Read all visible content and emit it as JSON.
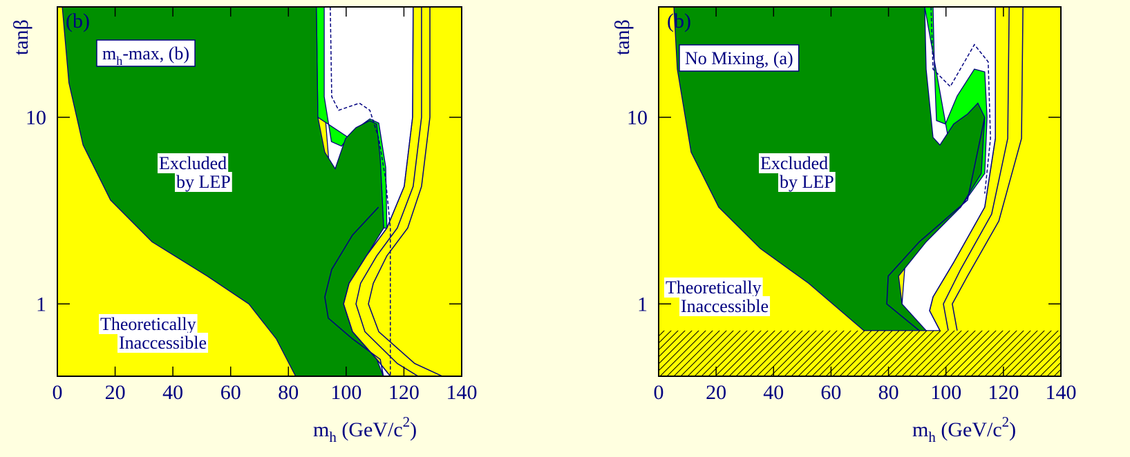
{
  "chart_data": [
    {
      "type": "region",
      "panel_label": "(b)",
      "ylabel": "tanβ",
      "xlabel": [
        {
          "t": "m"
        },
        {
          "t": "h",
          "pos": "sub"
        },
        {
          "t": " (GeV/c"
        },
        {
          "t": "2",
          "pos": "sup"
        },
        {
          "t": ")"
        }
      ],
      "xlim": [
        0,
        140
      ],
      "ylim": [
        0.41,
        39
      ],
      "log_y": true,
      "xticks": [
        0,
        20,
        40,
        60,
        80,
        100,
        120,
        140
      ],
      "yticks": [
        1,
        10
      ],
      "background": "#ffff00",
      "annotations": [
        {
          "parts": [
            {
              "t": "m"
            },
            {
              "t": "h",
              "pos": "sub"
            },
            {
              "t": "-max, (b)"
            }
          ],
          "boxed": true
        },
        {
          "lines": [
            "Excluded",
            "by LEP"
          ]
        },
        {
          "lines": [
            "Theoretically",
            "Inaccessible"
          ]
        }
      ],
      "regions": [
        {
          "color": "#ffffff",
          "x": [
            89.7,
            123.2,
            123,
            120.1,
            114.1,
            107,
            101,
            99.1,
            102.2,
            110.6,
            115.3,
            100
          ],
          "y": [
            39,
            39,
            10,
            4.26,
            2.55,
            1.81,
            1.29,
            1,
            0.71,
            0.505,
            0.41,
            0.41
          ]
        },
        {
          "color": "#00ff00",
          "x": [
            89.7,
            92.4,
            92.4,
            94.9,
            98.4,
            102.2,
            108.2,
            111.3,
            113.7,
            114.1,
            113,
            111.8,
            90.2
          ],
          "y": [
            39,
            39,
            12.9,
            7.4,
            7.0,
            8.4,
            9.8,
            9.3,
            5.4,
            2.55,
            2.55,
            6,
            10
          ]
        },
        {
          "color": "#008f00",
          "x": [
            1.7,
            4,
            8.9,
            18.4,
            32.8,
            51.9,
            66.3,
            75.8,
            82.5,
            112.9,
            110.6,
            102.2,
            99.1,
            101,
            107,
            113,
            111.8,
            110.6,
            108.2,
            103.4,
            99.8,
            96.2,
            92.6,
            90.2,
            89.7
          ],
          "y": [
            39,
            15.3,
            7.1,
            3.6,
            2.15,
            1.41,
            1,
            0.65,
            0.41,
            0.41,
            0.505,
            0.71,
            1,
            1.29,
            1.81,
            2.55,
            6,
            9.2,
            9.6,
            8.8,
            7.7,
            5.3,
            6.5,
            10,
            39
          ]
        }
      ],
      "curves": [
        {
          "color": "#000080",
          "x": [
            123.2,
            123,
            120.1,
            114.1,
            107,
            101,
            99.1,
            102.2,
            110.6,
            115.3
          ],
          "y": [
            39,
            10,
            4.26,
            2.55,
            1.81,
            1.29,
            1,
            0.71,
            0.505,
            0.41
          ]
        },
        {
          "color": "#000080",
          "x": [
            126.1,
            126.1,
            123.2,
            117.7,
            110.6,
            105,
            103.4,
            106.5,
            117.7,
            124.9
          ],
          "y": [
            39,
            10,
            4.26,
            2.55,
            1.81,
            1.29,
            1,
            0.71,
            0.48,
            0.41
          ]
        },
        {
          "color": "#000080",
          "x": [
            129,
            129,
            126.1,
            121.3,
            114.1,
            109.4,
            107.7,
            111.3,
            123.7,
            133.3
          ],
          "y": [
            39,
            10,
            4.26,
            2.55,
            1.81,
            1.29,
            1,
            0.71,
            0.48,
            0.41
          ]
        },
        {
          "color": "#000080",
          "dash": true,
          "x": [
            94.5,
            95,
            97.4,
            104.6,
            108.2,
            111.3,
            113.7,
            115.3,
            115.3
          ],
          "y": [
            39,
            12.9,
            10.9,
            11.9,
            10.9,
            7.7,
            4.6,
            2.55,
            0.41
          ]
        },
        {
          "color": "#000080",
          "x": [
            111.2,
            102.2,
            95,
            92.6,
            93.8,
            102.2,
            111.8,
            112.9
          ],
          "y": [
            3.3,
            2.34,
            1.53,
            1.09,
            0.84,
            0.65,
            0.505,
            0.41
          ]
        }
      ]
    },
    {
      "type": "region",
      "panel_label": "(b)",
      "ylabel": "tanβ",
      "xlabel": [
        {
          "t": "m"
        },
        {
          "t": "h",
          "pos": "sub"
        },
        {
          "t": " (GeV/c"
        },
        {
          "t": "2",
          "pos": "sup"
        },
        {
          "t": ")"
        }
      ],
      "xlim": [
        0,
        140
      ],
      "ylim": [
        0.41,
        39
      ],
      "log_y": true,
      "xticks": [
        0,
        20,
        40,
        60,
        80,
        100,
        120,
        140
      ],
      "yticks": [
        1,
        10
      ],
      "background": "#ffff00",
      "hatch_below": 0.72,
      "annotations": [
        {
          "parts": [
            {
              "t": "No Mixing, (a)"
            }
          ],
          "boxed": true
        },
        {
          "lines": [
            "Excluded",
            "by LEP"
          ]
        },
        {
          "lines": [
            "Theoretically",
            "Inaccessible"
          ]
        }
      ],
      "regions": [
        {
          "color": "#ffffff",
          "x": [
            92.6,
            117.2,
            117.2,
            113.5,
            102.7,
            95.5,
            94.3,
            97.9,
            84
          ],
          "y": [
            39,
            39,
            7.7,
            3.3,
            1.67,
            1.09,
            0.92,
            0.72,
            0.72
          ]
        },
        {
          "color": "#00ff00",
          "x": [
            92.6,
            95.5,
            96,
            96.7,
            99.8,
            103.9,
            109.9,
            113.5,
            114.3,
            113.5,
            105.1
          ],
          "y": [
            39,
            39,
            18.1,
            9.6,
            9.2,
            13,
            18.1,
            17.5,
            10,
            5,
            3.3
          ]
        },
        {
          "color": "#008f00",
          "x": [
            5.3,
            6.5,
            11.3,
            20.9,
            35.4,
            52.2,
            71.4,
            93.1,
            84.7,
            83.5,
            93.1,
            105.1,
            112.3,
            113.5,
            111.1,
            107.5,
            102.7,
            97.9,
            95.5,
            93.1,
            92.6
          ],
          "y": [
            39,
            18.1,
            6.5,
            3.3,
            1.98,
            1.29,
            0.72,
            0.72,
            1,
            1.41,
            2.15,
            3.3,
            5,
            10,
            11.9,
            10.4,
            9.2,
            7.1,
            7.8,
            18.1,
            39
          ]
        }
      ],
      "curves": [
        {
          "color": "#000080",
          "x": [
            117.2,
            117.2,
            113.5,
            102.7,
            95.5,
            94.3,
            97.9
          ],
          "y": [
            39,
            7.7,
            3.3,
            1.67,
            1.09,
            0.92,
            0.72
          ]
        },
        {
          "color": "#000080",
          "x": [
            122,
            121.5,
            115.9,
            105.1,
            99.1,
            100.8
          ],
          "y": [
            39,
            7.7,
            3.03,
            1.53,
            1,
            0.72
          ]
        },
        {
          "color": "#000080",
          "x": [
            126.8,
            126.3,
            118.4,
            107.5,
            102.2,
            103.9
          ],
          "y": [
            39,
            7.7,
            2.78,
            1.41,
            1,
            0.72
          ]
        },
        {
          "color": "#000080",
          "dash": true,
          "x": [
            94.8,
            95.5,
            101.5,
            109.9,
            114.7,
            115.5,
            113.5
          ],
          "y": [
            39,
            18.1,
            14.6,
            24.5,
            19.8,
            7.7,
            3.9
          ]
        },
        {
          "color": "#000080",
          "x": [
            113.5,
            107.5,
            90.7,
            79.9,
            79.4,
            90.7
          ],
          "y": [
            10,
            3.6,
            2.15,
            1.41,
            1,
            0.72
          ]
        }
      ]
    }
  ]
}
